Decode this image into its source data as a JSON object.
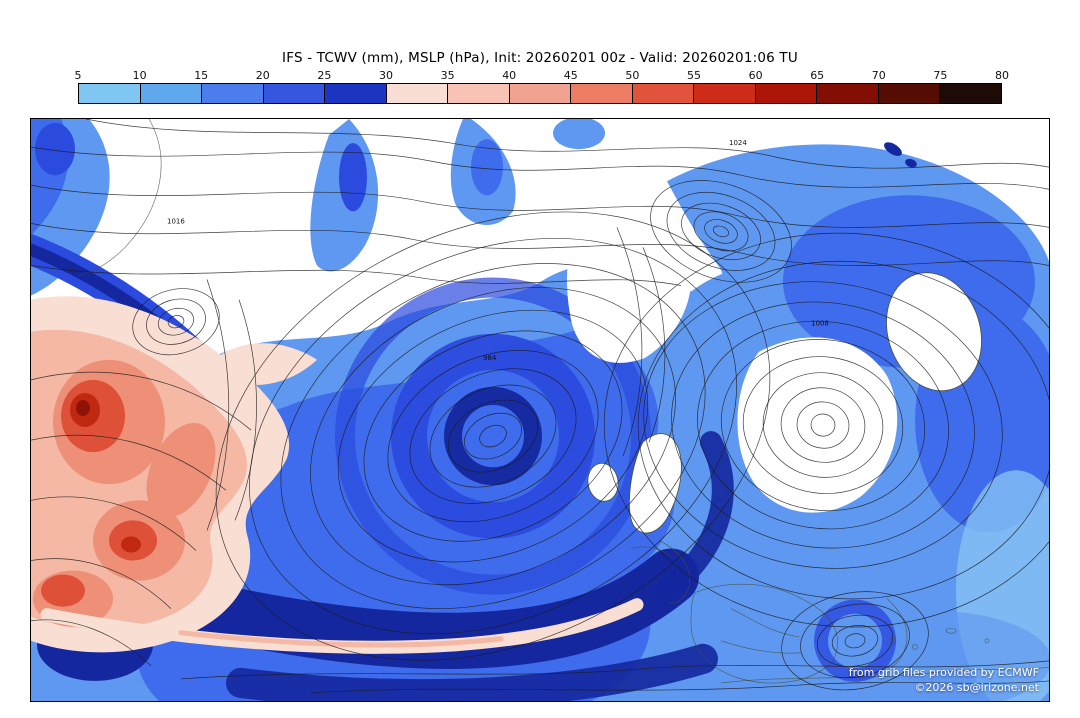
{
  "header": {
    "title": "IFS - TCWV (mm), MSLP (hPa), Init: 20260201 00z - Valid: 20260201:06 TU"
  },
  "colorbar": {
    "unit": "mm",
    "tick_labels": [
      "5",
      "10",
      "15",
      "20",
      "25",
      "30",
      "35",
      "40",
      "45",
      "50",
      "55",
      "60",
      "65",
      "70",
      "75",
      "80"
    ],
    "segment_colors": [
      "#7fc6f2",
      "#5fa8ee",
      "#4b7eec",
      "#3557e0",
      "#1c35c0",
      "#f9ded6",
      "#f6c3b5",
      "#f1a392",
      "#ec7c64",
      "#e1533a",
      "#cd2c18",
      "#ab1608",
      "#830f04",
      "#550c03",
      "#1c0b06"
    ]
  },
  "map": {
    "attribution_line1": "from grib files provided by ECMWF",
    "attribution_line2": "©2026 sb@irizone.net",
    "isobar_labels": [
      "1024",
      "1016",
      "1008",
      "984"
    ],
    "map_colors": {
      "light_blue": "#86c2f4",
      "blue": "#5f98f0",
      "medium_blue": "#3e6cec",
      "deep_blue": "#2b4ade",
      "navy": "#14279e",
      "pale_pink": "#f9ded4",
      "salmon": "#f4b8a4",
      "red": "#df5038",
      "dark_red": "#8e1205"
    }
  }
}
